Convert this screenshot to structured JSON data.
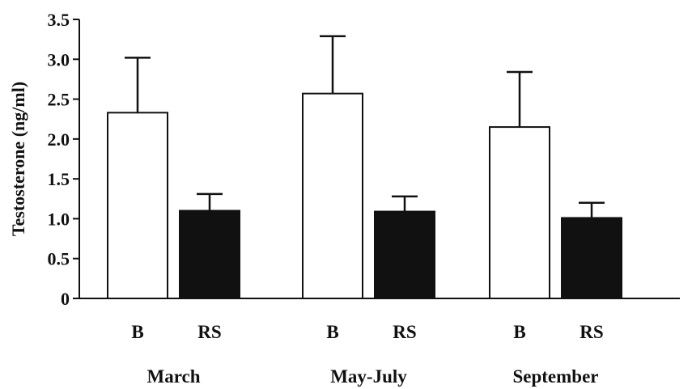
{
  "chart_data": {
    "type": "bar",
    "ylabel": "Testosterone (ng/ml)",
    "ylim": [
      0,
      3.5
    ],
    "yticks": [
      {
        "value": 0,
        "label": "0"
      },
      {
        "value": 0.5,
        "label": "0.5"
      },
      {
        "value": 1.0,
        "label": "1.0"
      },
      {
        "value": 1.5,
        "label": "1.5"
      },
      {
        "value": 2.0,
        "label": "2.0"
      },
      {
        "value": 2.5,
        "label": "2.5"
      },
      {
        "value": 3.0,
        "label": "3.0"
      },
      {
        "value": 3.5,
        "label": "3.5"
      }
    ],
    "groups": [
      "March",
      "May-July",
      "September"
    ],
    "series": [
      {
        "name": "B",
        "color": "#ffffff",
        "values": [
          2.33,
          2.57,
          2.15
        ],
        "errors": [
          0.69,
          0.72,
          0.69
        ]
      },
      {
        "name": "RS",
        "color": "#111111",
        "values": [
          1.1,
          1.09,
          1.01
        ],
        "errors": [
          0.21,
          0.19,
          0.19
        ]
      }
    ],
    "grid": false,
    "legend": "none"
  }
}
